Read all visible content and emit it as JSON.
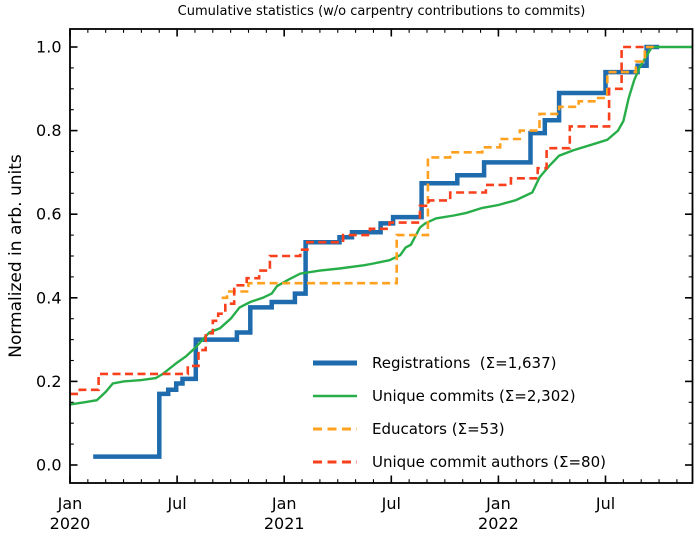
{
  "title": "Cumulative statistics (w/o carpentry contributions to commits)",
  "y_axis": {
    "label": "Normalized in arb. units",
    "ticks": [
      {
        "value": 0.0,
        "label": "0.0"
      },
      {
        "value": 0.2,
        "label": "0.2"
      },
      {
        "value": 0.4,
        "label": "0.4"
      },
      {
        "value": 0.6,
        "label": "0.6"
      },
      {
        "value": 0.8,
        "label": "0.8"
      },
      {
        "value": 1.0,
        "label": "1.0"
      }
    ],
    "minor_step": 0.05,
    "range_shown": [
      -0.043,
      1.043
    ]
  },
  "x_axis": {
    "unit": "months since Jan 2020",
    "minor_every_months": 1,
    "ticks": [
      {
        "month": 0,
        "line1": "Jan",
        "line2": "2020"
      },
      {
        "month": 6,
        "line1": "Jul",
        "line2": ""
      },
      {
        "month": 12,
        "line1": "Jan",
        "line2": "2021"
      },
      {
        "month": 18,
        "line1": "Jul",
        "line2": ""
      },
      {
        "month": 24,
        "line1": "Jan",
        "line2": "2022"
      },
      {
        "month": 30,
        "line1": "Jul",
        "line2": ""
      }
    ],
    "range_months": [
      0,
      34.87
    ]
  },
  "chart_data": {
    "type": "line",
    "x_unit": "months_since_2020_01",
    "grid": false,
    "legend_position": "lower right",
    "xlim_months": [
      0,
      34.87
    ],
    "ylim": [
      -0.043,
      1.043
    ],
    "series": [
      {
        "id": "registrations",
        "label": "Registrations  (Σ=1,637)",
        "total": "1,637",
        "color": "#1e6bad",
        "width": 4.5,
        "dash": null,
        "mode": "step",
        "end_month": 33.0,
        "points": [
          [
            1.3,
            0.02
          ],
          [
            5.0,
            0.17
          ],
          [
            5.5,
            0.18
          ],
          [
            5.95,
            0.195
          ],
          [
            6.3,
            0.206
          ],
          [
            7.05,
            0.3
          ],
          [
            9.35,
            0.317
          ],
          [
            10.1,
            0.377
          ],
          [
            11.3,
            0.39
          ],
          [
            12.6,
            0.41
          ],
          [
            13.2,
            0.533
          ],
          [
            15.1,
            0.545
          ],
          [
            15.8,
            0.557
          ],
          [
            17.4,
            0.578
          ],
          [
            18.1,
            0.593
          ],
          [
            19.7,
            0.674
          ],
          [
            21.7,
            0.693
          ],
          [
            23.2,
            0.724
          ],
          [
            25.8,
            0.794
          ],
          [
            26.6,
            0.825
          ],
          [
            27.4,
            0.89
          ],
          [
            30.0,
            0.94
          ],
          [
            31.8,
            0.955
          ],
          [
            32.3,
            1.0
          ]
        ]
      },
      {
        "id": "unique_commits",
        "label": "Unique commits (Σ=2,302)",
        "total": "2,302",
        "color": "#27ae49",
        "width": 2.4,
        "dash": null,
        "mode": "line",
        "end_month": 34.87,
        "points": [
          [
            0,
            0.145
          ],
          [
            0.8,
            0.15
          ],
          [
            1.5,
            0.155
          ],
          [
            2.0,
            0.175
          ],
          [
            2.4,
            0.195
          ],
          [
            3.0,
            0.2
          ],
          [
            4.0,
            0.203
          ],
          [
            4.8,
            0.208
          ],
          [
            5.2,
            0.218
          ],
          [
            6.0,
            0.245
          ],
          [
            6.5,
            0.26
          ],
          [
            7.0,
            0.28
          ],
          [
            7.8,
            0.317
          ],
          [
            8.4,
            0.327
          ],
          [
            9.0,
            0.35
          ],
          [
            9.5,
            0.377
          ],
          [
            10.1,
            0.39
          ],
          [
            10.8,
            0.4
          ],
          [
            11.3,
            0.41
          ],
          [
            11.6,
            0.428
          ],
          [
            12.3,
            0.445
          ],
          [
            12.9,
            0.458
          ],
          [
            14.0,
            0.465
          ],
          [
            15.1,
            0.47
          ],
          [
            16.5,
            0.478
          ],
          [
            17.0,
            0.482
          ],
          [
            17.9,
            0.49
          ],
          [
            18.5,
            0.502
          ],
          [
            18.8,
            0.52
          ],
          [
            19.1,
            0.527
          ],
          [
            19.6,
            0.568
          ],
          [
            19.9,
            0.578
          ],
          [
            20.5,
            0.59
          ],
          [
            21.5,
            0.597
          ],
          [
            22.2,
            0.603
          ],
          [
            23.1,
            0.615
          ],
          [
            24.0,
            0.622
          ],
          [
            25.0,
            0.634
          ],
          [
            25.9,
            0.652
          ],
          [
            26.3,
            0.688
          ],
          [
            26.9,
            0.718
          ],
          [
            27.4,
            0.74
          ],
          [
            28.2,
            0.753
          ],
          [
            29.2,
            0.766
          ],
          [
            30.1,
            0.778
          ],
          [
            30.7,
            0.8
          ],
          [
            31.0,
            0.823
          ],
          [
            31.3,
            0.878
          ],
          [
            31.6,
            0.92
          ],
          [
            31.9,
            0.95
          ],
          [
            32.2,
            0.972
          ],
          [
            32.6,
            1.0
          ],
          [
            34.87,
            1.0
          ]
        ]
      },
      {
        "id": "educators",
        "label": "Educators (Σ=53)",
        "total": "53",
        "color": "#ffa01e",
        "width": 2.6,
        "dash": [
          8,
          4.5
        ],
        "mode": "step",
        "end_month": 32.7,
        "points": [
          [
            8.5,
            0.4
          ],
          [
            8.8,
            0.415
          ],
          [
            10.0,
            0.435
          ],
          [
            18.3,
            0.55
          ],
          [
            20.05,
            0.736
          ],
          [
            21.3,
            0.748
          ],
          [
            23.1,
            0.76
          ],
          [
            24.1,
            0.78
          ],
          [
            25.2,
            0.8
          ],
          [
            26.3,
            0.84
          ],
          [
            27.4,
            0.857
          ],
          [
            28.5,
            0.87
          ],
          [
            29.5,
            0.878
          ],
          [
            30.1,
            0.94
          ],
          [
            31.7,
            0.965
          ],
          [
            32.2,
            1.0
          ]
        ]
      },
      {
        "id": "unique_commit_authors",
        "label": "Unique commit authors (Σ=80)",
        "total": "80",
        "color": "#f8401d",
        "width": 2.6,
        "dash": [
          8,
          4.5
        ],
        "mode": "step",
        "end_month": 32.2,
        "points": [
          [
            0,
            0.17
          ],
          [
            0.55,
            0.18
          ],
          [
            1.6,
            0.218
          ],
          [
            6.6,
            0.237
          ],
          [
            7.2,
            0.275
          ],
          [
            7.6,
            0.315
          ],
          [
            8.0,
            0.345
          ],
          [
            8.3,
            0.362
          ],
          [
            8.7,
            0.386
          ],
          [
            9.2,
            0.43
          ],
          [
            9.9,
            0.447
          ],
          [
            10.6,
            0.465
          ],
          [
            11.2,
            0.5
          ],
          [
            12.9,
            0.515
          ],
          [
            13.3,
            0.533
          ],
          [
            15.3,
            0.55
          ],
          [
            16.8,
            0.565
          ],
          [
            17.9,
            0.58
          ],
          [
            19.6,
            0.62
          ],
          [
            20.1,
            0.633
          ],
          [
            21.3,
            0.652
          ],
          [
            23.3,
            0.67
          ],
          [
            24.7,
            0.686
          ],
          [
            26.2,
            0.71
          ],
          [
            26.7,
            0.758
          ],
          [
            28.0,
            0.81
          ],
          [
            30.2,
            0.9
          ],
          [
            30.9,
            1.0
          ]
        ]
      }
    ]
  }
}
